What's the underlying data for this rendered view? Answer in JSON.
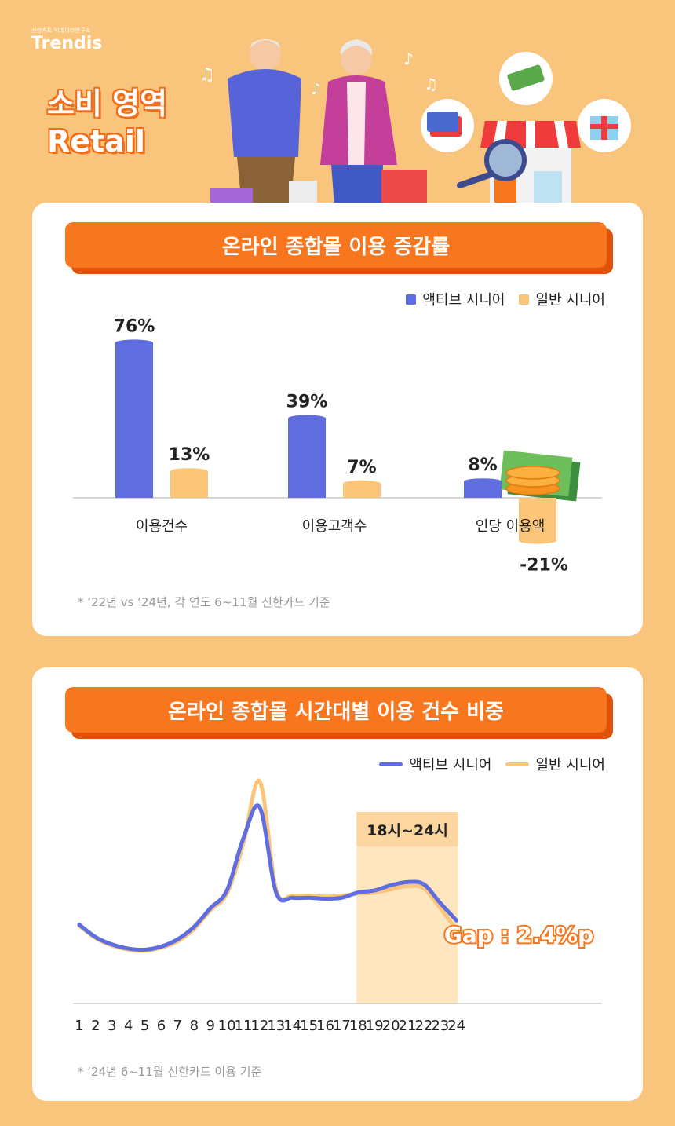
{
  "brand": {
    "sub": "신한카드 빅데이터연구소",
    "name": "Trendis"
  },
  "hero": {
    "line1": "소비 영역",
    "line2": "Retail"
  },
  "colors": {
    "active": "#5f6de0",
    "general": "#fbc57a",
    "accent": "#f8761d",
    "highlight": "#fde6c0",
    "highlight_header": "#fbd6a0",
    "gap_text": "#f8761d"
  },
  "section1": {
    "title": "온라인 종합몰 이용 증감률",
    "note": "* ‘22년 vs ‘24년, 각 연도 6~11월 신한카드 기준"
  },
  "section2": {
    "title": "온라인 종합몰 시간대별 이용 건수 비중",
    "note": "* ‘24년 6~11월 신한카드 이용 기준"
  },
  "chart_data": [
    {
      "type": "bar",
      "categories": [
        "이용건수",
        "이용고객수",
        "인당 이용액"
      ],
      "series": [
        {
          "name": "액티브 시니어",
          "values": [
            76,
            39,
            8
          ],
          "labels": [
            "76%",
            "39%",
            "8%"
          ]
        },
        {
          "name": "일반 시니어",
          "values": [
            13,
            7,
            -21
          ],
          "labels": [
            "13%",
            "7%",
            "-21%"
          ]
        }
      ],
      "unit": "%",
      "legend": "top-right",
      "grid": false
    },
    {
      "type": "line",
      "x": [
        1,
        2,
        3,
        4,
        5,
        6,
        7,
        8,
        9,
        10,
        11,
        12,
        13,
        14,
        15,
        16,
        17,
        18,
        19,
        20,
        21,
        22,
        23,
        24
      ],
      "series": [
        {
          "name": "액티브 시니어",
          "values": [
            3.2,
            2.0,
            1.3,
            0.9,
            0.8,
            1.1,
            1.8,
            3.0,
            4.8,
            6.5,
            11.5,
            14.5,
            6.3,
            5.8,
            5.8,
            5.7,
            5.8,
            6.3,
            6.5,
            7.0,
            7.3,
            7.1,
            5.3,
            3.6
          ]
        },
        {
          "name": "일반 시니어",
          "values": [
            3.1,
            1.9,
            1.2,
            0.8,
            0.7,
            1.0,
            1.6,
            2.8,
            4.6,
            6.2,
            11.0,
            17.0,
            6.6,
            6.0,
            6.0,
            5.9,
            6.0,
            6.2,
            6.3,
            6.6,
            6.9,
            6.7,
            4.8,
            2.7
          ]
        }
      ],
      "highlight": {
        "label": "18시~24시",
        "from": 18,
        "to": 24
      },
      "annotation": "Gap : 2.4%p",
      "legend": "top-right",
      "grid": false
    }
  ]
}
